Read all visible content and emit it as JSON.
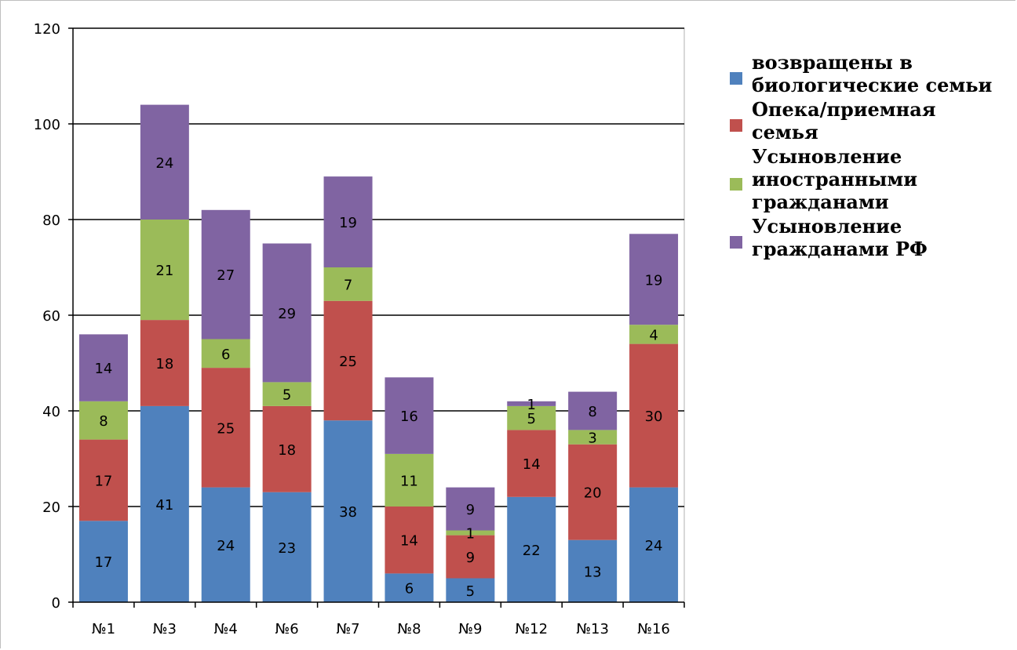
{
  "chart_data": {
    "type": "bar",
    "stacked": true,
    "categories": [
      "№1",
      "№3",
      "№4",
      "№6",
      "№7",
      "№8",
      "№9",
      "№12",
      "№13",
      "№16"
    ],
    "series": [
      {
        "name": "возвращены в биологические семьи",
        "color": "#4f81bd",
        "values": [
          17,
          41,
          24,
          23,
          38,
          6,
          5,
          22,
          13,
          24
        ]
      },
      {
        "name": "Опека/приемная семья",
        "color": "#c0504d",
        "values": [
          17,
          18,
          25,
          18,
          25,
          14,
          9,
          14,
          20,
          30
        ]
      },
      {
        "name": "Усыновление иностранными гражданами",
        "color": "#9bbb59",
        "values": [
          8,
          21,
          6,
          5,
          7,
          11,
          1,
          5,
          3,
          4
        ]
      },
      {
        "name": "Усыновление гражданами РФ",
        "color": "#8064a2",
        "values": [
          14,
          24,
          27,
          29,
          19,
          16,
          9,
          1,
          8,
          19
        ]
      }
    ],
    "ylim": [
      0,
      120
    ],
    "yticks": [
      "0",
      "20",
      "40",
      "60",
      "80",
      "100",
      "120"
    ],
    "grid": true,
    "legend_position": "right"
  },
  "legend": {
    "items": [
      "возвращены в\nбиологические семьи",
      "Опека/приемная\nсемья",
      "Усыновление\nиностранными\nгражданами",
      "Усыновление\nгражданами РФ"
    ]
  }
}
